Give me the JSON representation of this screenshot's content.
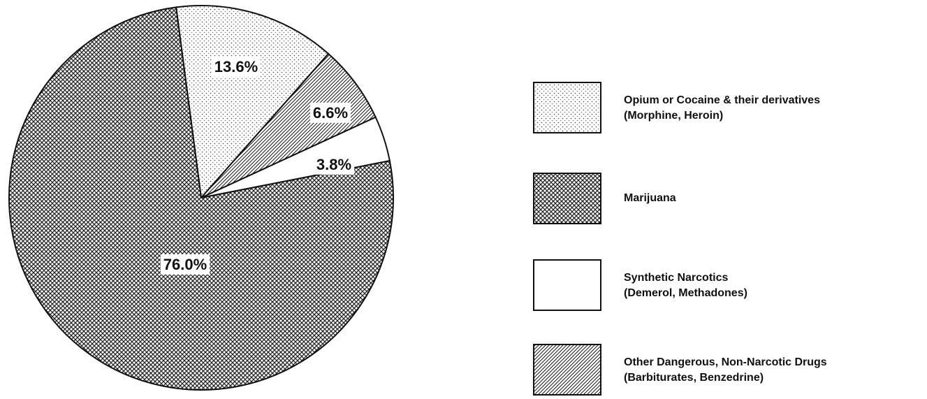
{
  "chart_data": {
    "type": "pie",
    "categories": [
      "Opium or Cocaine & their derivatives",
      "Other Dangerous, Non-Narcotic Drugs",
      "Synthetic Narcotics",
      "Marijuana"
    ],
    "category_notes": [
      "(Morphine, Heroin)",
      "(Barbiturates, Benzedrine)",
      "(Demerol, Methadones)",
      null
    ],
    "values": [
      13.6,
      6.6,
      3.8,
      76.0
    ],
    "value_labels": [
      "13.6%",
      "6.6%",
      "3.8%",
      "76.0%"
    ],
    "patterns": [
      "dots",
      "diagonal",
      "none",
      "crosshatch"
    ]
  }
}
